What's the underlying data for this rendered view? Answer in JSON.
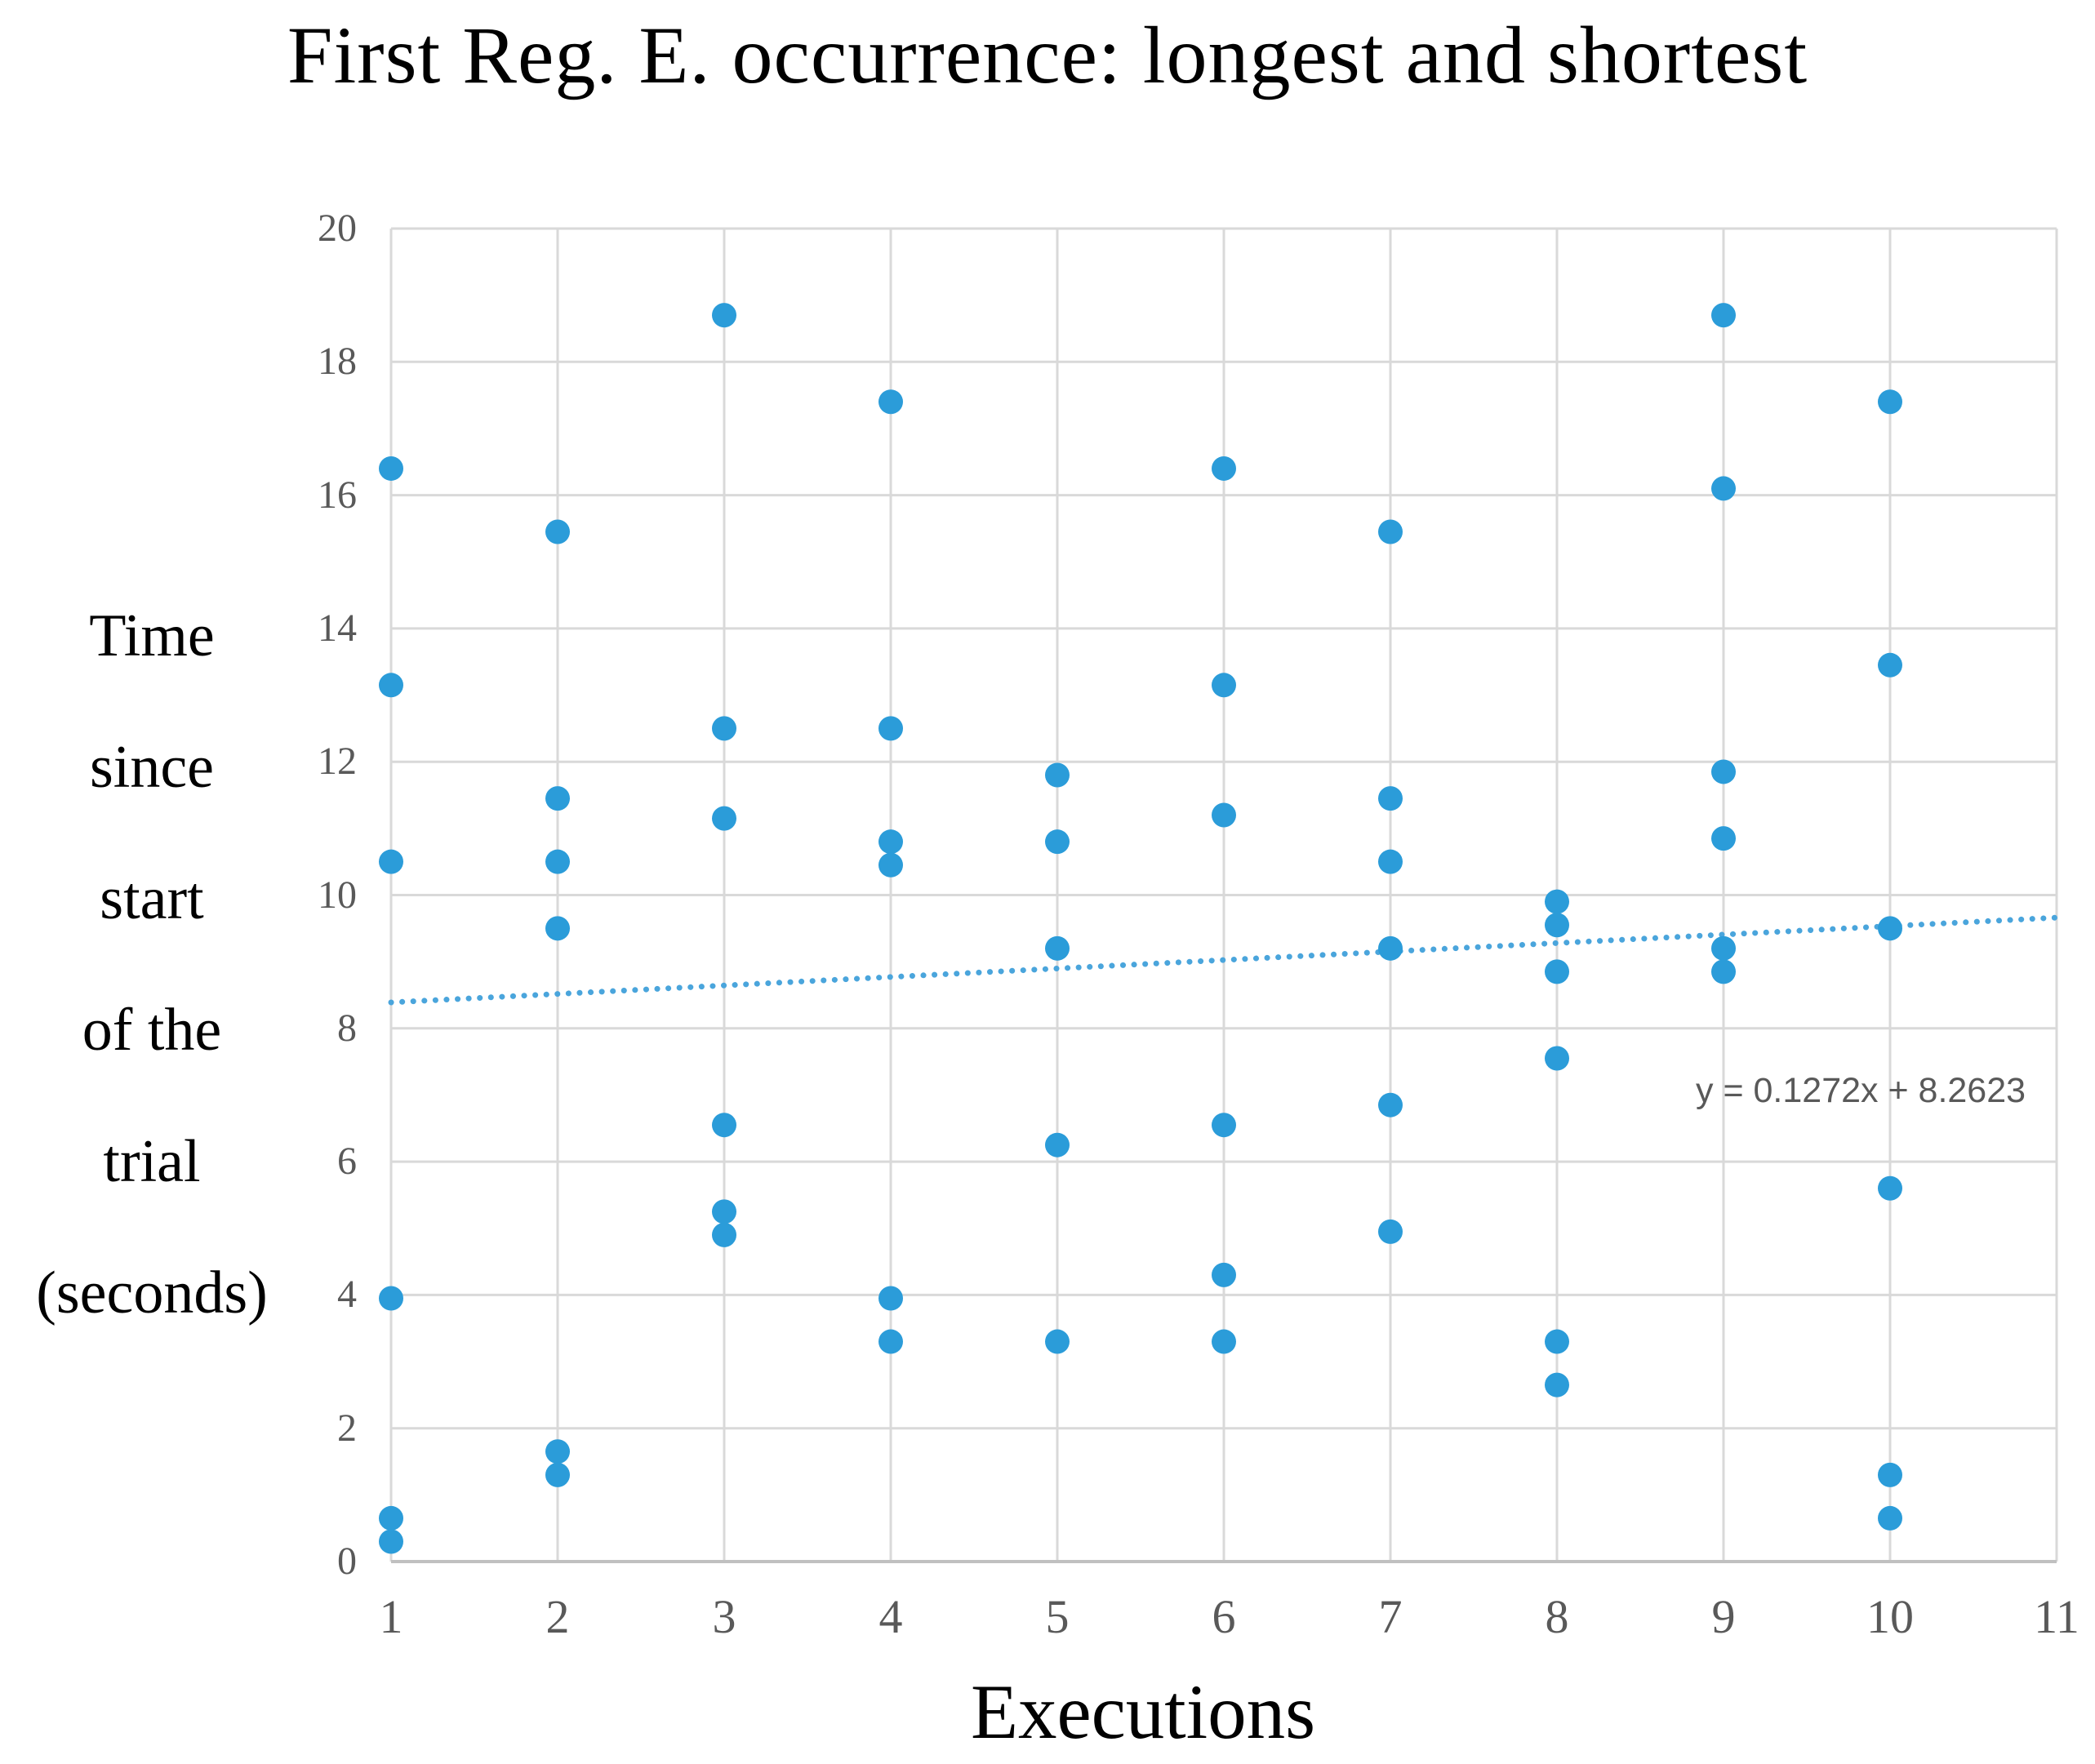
{
  "title": "First Reg. E. occurrence: longest and shortest",
  "chart_data": {
    "type": "scatter",
    "title": "First Reg. E. occurrence: longest and shortest",
    "xlabel": "Executions",
    "ylabel_lines": [
      "Time",
      "since",
      "start",
      "of the",
      "trial",
      "(seconds)"
    ],
    "xlim": [
      1,
      11
    ],
    "ylim": [
      0,
      20
    ],
    "x_ticks": [
      1,
      2,
      3,
      4,
      5,
      6,
      7,
      8,
      9,
      10,
      11
    ],
    "y_ticks": [
      0,
      2,
      4,
      6,
      8,
      10,
      12,
      14,
      16,
      18,
      20
    ],
    "grid": true,
    "legend": "none",
    "points": [
      {
        "x": 1,
        "ys": [
          16.4,
          13.15,
          10.5,
          3.95,
          0.65,
          0.3
        ]
      },
      {
        "x": 2,
        "ys": [
          15.45,
          11.45,
          10.5,
          9.5,
          1.65,
          1.3
        ]
      },
      {
        "x": 3,
        "ys": [
          18.7,
          12.5,
          11.15,
          6.55,
          5.25,
          4.9
        ]
      },
      {
        "x": 4,
        "ys": [
          17.4,
          12.5,
          10.8,
          10.45,
          3.95,
          3.3
        ]
      },
      {
        "x": 5,
        "ys": [
          11.8,
          10.8,
          9.2,
          6.25,
          3.3
        ]
      },
      {
        "x": 6,
        "ys": [
          16.4,
          13.15,
          11.2,
          6.55,
          4.3,
          3.3
        ]
      },
      {
        "x": 7,
        "ys": [
          15.45,
          11.45,
          10.5,
          9.2,
          6.85,
          4.95
        ]
      },
      {
        "x": 8,
        "ys": [
          9.9,
          9.55,
          8.85,
          7.55,
          3.3,
          2.65
        ]
      },
      {
        "x": 9,
        "ys": [
          18.7,
          16.1,
          11.85,
          10.85,
          9.2,
          8.85
        ]
      },
      {
        "x": 10,
        "ys": [
          17.4,
          13.45,
          9.5,
          5.6,
          1.3,
          0.65
        ]
      }
    ],
    "trendline": {
      "slope": 0.1272,
      "intercept": 8.2623,
      "x_start": 1,
      "x_end": 11,
      "style": "dotted",
      "equation_label": "y = 0.1272x + 8.2623"
    },
    "colors": {
      "marker": "#2B9CD9",
      "trendline": "#4AA5DC",
      "gridline": "#D9D9D9",
      "axis_line": "#C0C0C0",
      "tick_text": "#595959",
      "equation_text": "#595959",
      "title_text": "#000000"
    }
  }
}
